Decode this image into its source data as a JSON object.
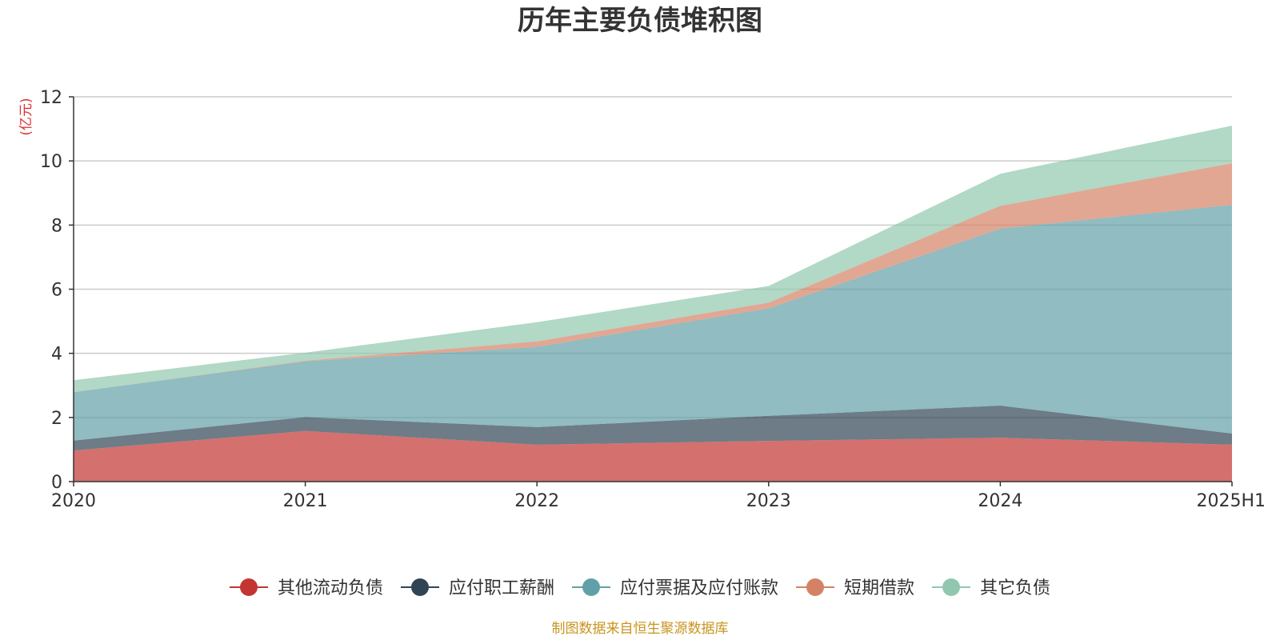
{
  "chart_data": {
    "type": "area",
    "stacked": true,
    "title": "历年主要负债堆积图",
    "unit_label": "(亿元)",
    "categories": [
      "2020",
      "2021",
      "2022",
      "2023",
      "2024",
      "2025H1"
    ],
    "ylim": [
      0,
      12
    ],
    "yticks": [
      0,
      2,
      4,
      6,
      8,
      10,
      12
    ],
    "grid": true,
    "legend_position": "bottom",
    "series": [
      {
        "name": "其他流动负债",
        "color": "#c23531",
        "values": [
          0.97,
          1.58,
          1.15,
          1.27,
          1.37,
          1.15
        ]
      },
      {
        "name": "应付职工薪酬",
        "color": "#2f4554",
        "values": [
          0.31,
          0.43,
          0.55,
          0.78,
          1.0,
          0.35
        ]
      },
      {
        "name": "应付票据及应付账款",
        "color": "#61a0a8",
        "values": [
          1.51,
          1.74,
          2.5,
          3.35,
          5.52,
          7.13
        ]
      },
      {
        "name": "短期借款",
        "color": "#d48265",
        "values": [
          0.0,
          0.02,
          0.17,
          0.18,
          0.71,
          1.3
        ]
      },
      {
        "name": "其它负债",
        "color": "#91c7ae",
        "values": [
          0.37,
          0.25,
          0.6,
          0.52,
          1.0,
          1.17
        ]
      }
    ]
  },
  "source_note": "制图数据来自恒生聚源数据库"
}
